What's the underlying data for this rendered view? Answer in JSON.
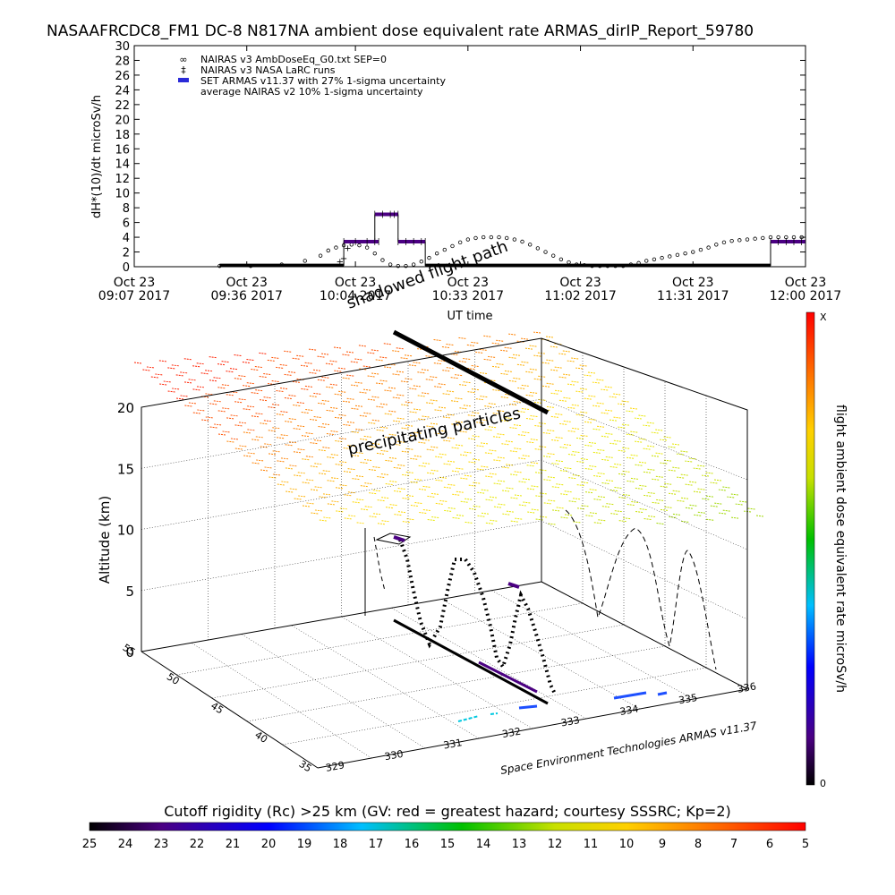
{
  "title": "NASAAFRCDC8_FM1 DC-8   N817NA ambient dose equivalent rate ARMAS_dirIP_Report_59780",
  "chart_data": [
    {
      "type": "scatter",
      "ylabel": "dH*(10)/dt microSv/h",
      "xlabel": "UT time",
      "ylim": [
        0,
        30
      ],
      "yticks": [
        0,
        2,
        4,
        6,
        8,
        10,
        12,
        14,
        16,
        18,
        20,
        22,
        24,
        26,
        28,
        30
      ],
      "xlim_minutes": [
        0,
        173
      ],
      "xticks": [
        {
          "m": 0,
          "l1": "Oct 23",
          "l2": "09:07 2017"
        },
        {
          "m": 29,
          "l1": "Oct 23",
          "l2": "09:36 2017"
        },
        {
          "m": 57,
          "l1": "Oct 23",
          "l2": "10:04 2017"
        },
        {
          "m": 86,
          "l1": "Oct 23",
          "l2": "10:33 2017"
        },
        {
          "m": 115,
          "l1": "Oct 23",
          "l2": "11:02 2017"
        },
        {
          "m": 144,
          "l1": "Oct 23",
          "l2": "11:31 2017"
        },
        {
          "m": 173,
          "l1": "Oct 23",
          "l2": "12:00 2017"
        }
      ],
      "legend": [
        {
          "symbol": "∞",
          "label": "NAIRAS v3 AmbDoseEq_G0.txt SEP=0"
        },
        {
          "symbol": "‡",
          "label": "NAIRAS v3 NASA LaRC runs"
        },
        {
          "symbol": "▬",
          "label": "SET ARMAS v11.37 with 27% 1-sigma uncertainty",
          "color": "#2a2ad8"
        },
        {
          "symbol": "",
          "label": "average NAIRAS v2 10% 1-sigma uncertainty"
        }
      ],
      "legend_position": "top-left",
      "series": [
        {
          "x": [
            22,
            30,
            38,
            44,
            48,
            50,
            52,
            54,
            56,
            58,
            60,
            62,
            64,
            66,
            68,
            70,
            72,
            74,
            76,
            78,
            80,
            82,
            84,
            86,
            88,
            90,
            92,
            94,
            96,
            98,
            100,
            102,
            104,
            106,
            108,
            110,
            112,
            114,
            116,
            118,
            120,
            122,
            124,
            126,
            128,
            130,
            132,
            134,
            136,
            138,
            140,
            142,
            144,
            146,
            148,
            150,
            152,
            154,
            156,
            158,
            160,
            162,
            164,
            166,
            168,
            170,
            172
          ],
          "y": [
            0.1,
            0.1,
            0.3,
            0.8,
            1.5,
            2.2,
            2.6,
            2.9,
            3.0,
            2.9,
            2.6,
            1.8,
            0.9,
            0.3,
            0.1,
            0.1,
            0.3,
            0.7,
            1.2,
            1.8,
            2.3,
            2.8,
            3.3,
            3.7,
            3.9,
            4.0,
            4.0,
            4.0,
            3.9,
            3.7,
            3.4,
            3.0,
            2.5,
            2.0,
            1.5,
            1.0,
            0.6,
            0.3,
            0.2,
            0.1,
            0.1,
            0.1,
            0.1,
            0.1,
            0.3,
            0.5,
            0.8,
            1.0,
            1.2,
            1.4,
            1.6,
            1.8,
            2.0,
            2.3,
            2.6,
            3.0,
            3.3,
            3.5,
            3.6,
            3.7,
            3.8,
            3.9,
            4.0,
            4.0,
            4.0,
            4.0,
            4.0
          ]
        },
        {
          "x": [
            53,
            54,
            55
          ],
          "y": [
            0.8,
            1.2,
            2.6
          ]
        },
        {
          "color": "#4b0082",
          "segments": [
            {
              "x": [
                54,
                57,
                60,
                62,
                63
              ],
              "y": [
                3.4,
                3.4,
                3.4,
                3.4,
                3.4
              ]
            },
            {
              "x": [
                62,
                64,
                66,
                67,
                68
              ],
              "y": [
                7.1,
                7.1,
                7.1,
                7.1,
                7.1
              ]
            },
            {
              "x": [
                68,
                70,
                72,
                74,
                75
              ],
              "y": [
                3.4,
                3.4,
                3.4,
                3.4,
                3.4
              ]
            },
            {
              "x": [
                164,
                166,
                168,
                170,
                172,
                173
              ],
              "y": [
                3.4,
                3.4,
                3.4,
                3.4,
                3.4,
                3.4
              ]
            }
          ],
          "baseline": [
            {
              "x": [
                22,
                54
              ],
              "y": [
                0.1,
                0.1
              ]
            },
            {
              "x": [
                75,
                164
              ],
              "y": [
                0.1,
                0.1
              ]
            }
          ]
        }
      ]
    },
    {
      "type": "scatter",
      "zlabel": "Altitude (km)",
      "zticks": [
        0,
        5,
        10,
        15,
        20
      ],
      "latitude_ticks": [
        35,
        40,
        45,
        50,
        55
      ],
      "longitude_ticks": [
        329,
        330,
        331,
        332,
        333,
        334,
        335,
        336
      ],
      "annotations": [
        "shadowed flight path",
        "precipitating particles"
      ],
      "footer": "Space Environment Technologies ARMAS v11.37"
    }
  ],
  "colorbar_right": {
    "label": "flight ambient dose equivalent rate microSv/h",
    "top": "X",
    "bottom": "0"
  },
  "colorbar_bottom": {
    "title": "Cutoff rigidity (Rc) >25 km (GV: red = greatest hazard; courtesy SSSRC; Kp=2)",
    "ticks": [
      25,
      24,
      23,
      22,
      21,
      20,
      19,
      18,
      17,
      16,
      15,
      14,
      13,
      12,
      11,
      10,
      9,
      8,
      7,
      6,
      5
    ]
  }
}
